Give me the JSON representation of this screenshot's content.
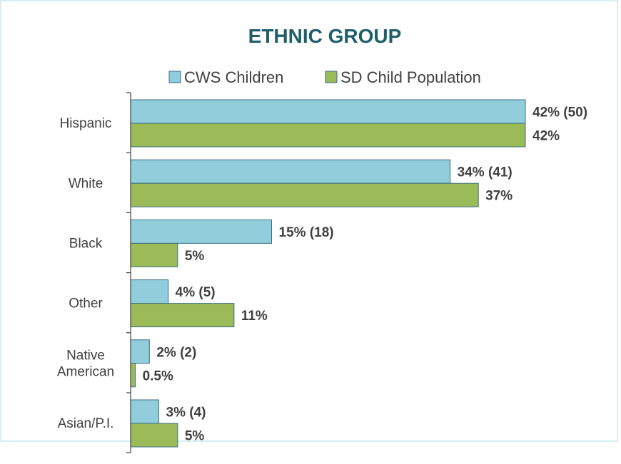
{
  "chart_data": {
    "type": "bar",
    "orientation": "horizontal",
    "title": "ETHNIC GROUP",
    "xlabel": "",
    "ylabel": "",
    "xlim": [
      0,
      42
    ],
    "grid": false,
    "legend_position": "top",
    "categories": [
      [
        "Hispanic"
      ],
      [
        "White"
      ],
      [
        "Black"
      ],
      [
        "Other"
      ],
      [
        "Native",
        "American"
      ],
      [
        "Asian/P.I."
      ]
    ],
    "series": [
      {
        "name": "CWS Children",
        "color": "#92cddc",
        "values": [
          42,
          34,
          15,
          4,
          2,
          3
        ],
        "labels": [
          "42% (50)",
          "34% (41)",
          "15% (18)",
          "4% (5)",
          "2% (2)",
          "3% (4)"
        ]
      },
      {
        "name": "SD Child Population",
        "color": "#9bbb59",
        "values": [
          42,
          37,
          5,
          11,
          0.5,
          5
        ],
        "labels": [
          "42%",
          "37%",
          "5%",
          "11%",
          "0.5%",
          "5%"
        ]
      }
    ]
  }
}
